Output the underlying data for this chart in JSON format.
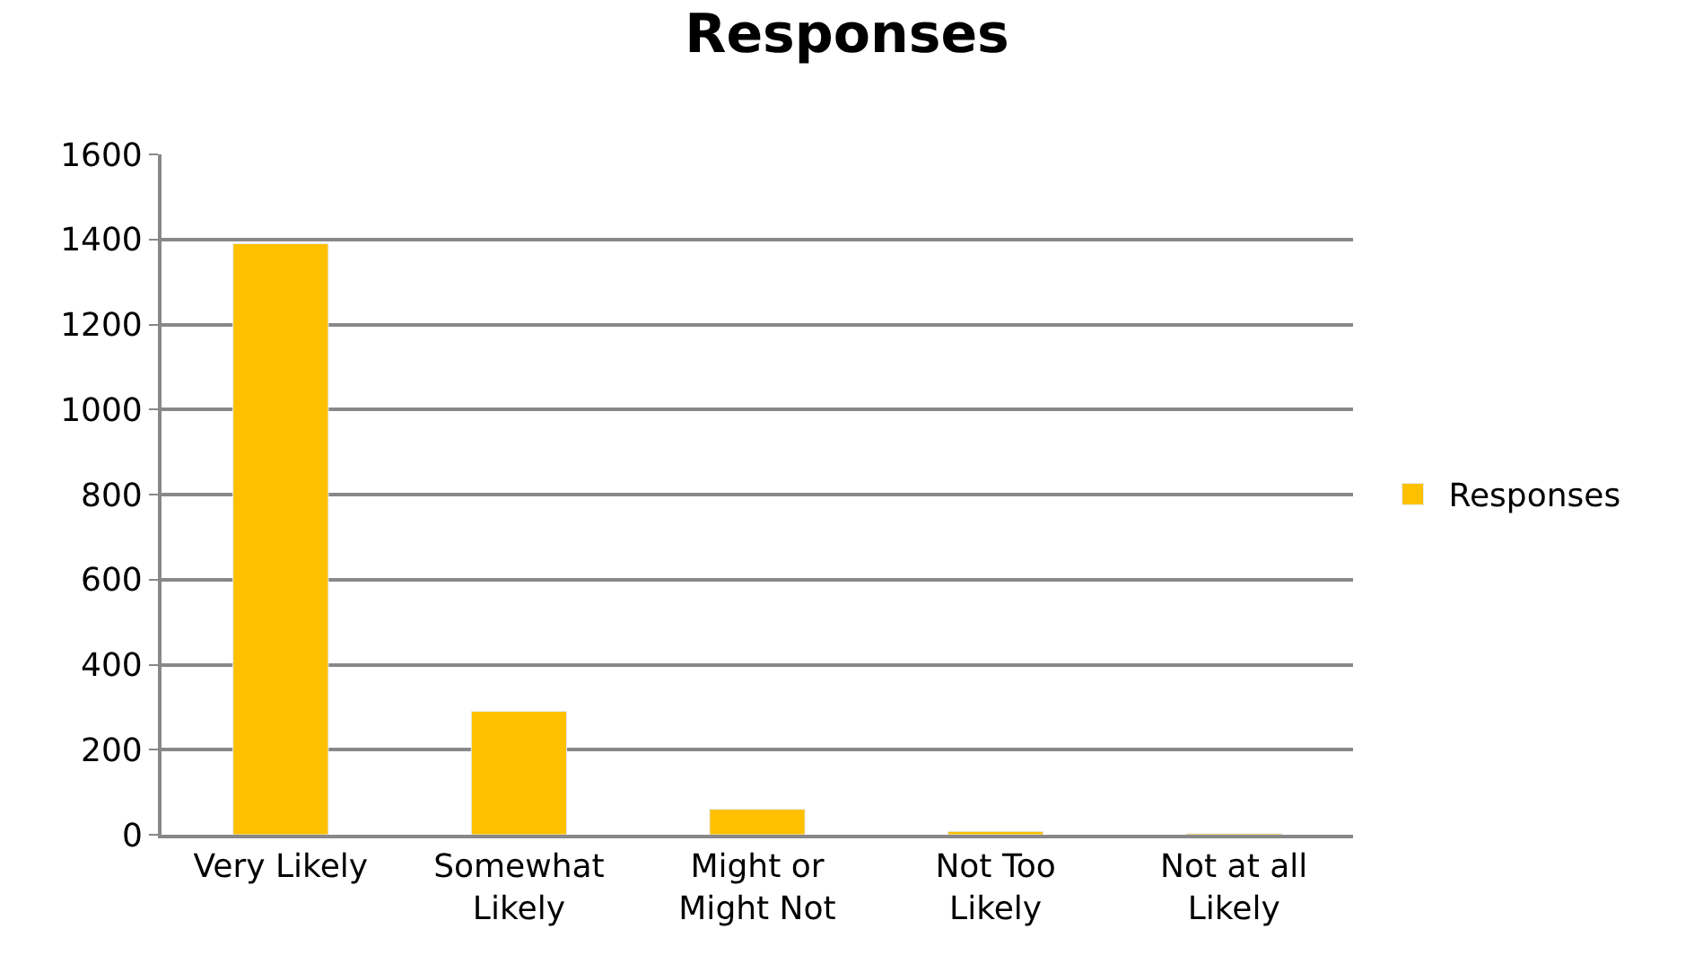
{
  "chart_data": {
    "type": "bar",
    "title": "Responses",
    "categories": [
      "Very Likely",
      "Somewhat Likely",
      "Might or Might Not",
      "Not Too Likely",
      "Not at all Likely"
    ],
    "series": [
      {
        "name": "Responses",
        "color": "#ffc000",
        "values": [
          1390,
          290,
          60,
          8,
          3
        ]
      }
    ],
    "ylim": [
      0,
      1600
    ],
    "yticks": [
      0,
      200,
      400,
      600,
      800,
      1000,
      1200,
      1400,
      1600
    ],
    "grid": "y",
    "legend": "right"
  }
}
